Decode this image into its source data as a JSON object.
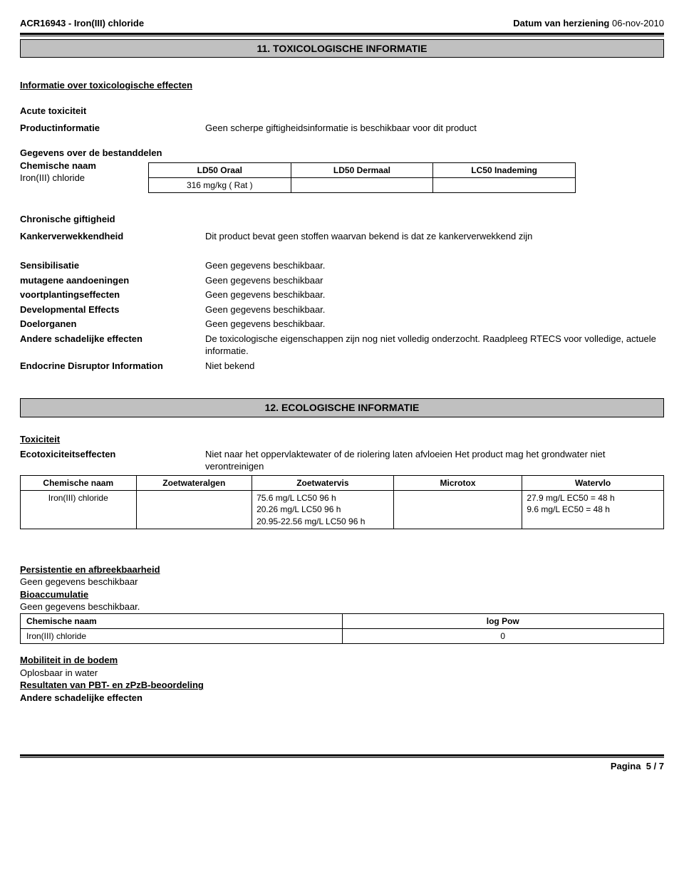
{
  "header": {
    "left": "ACR16943 - Iron(III) chloride",
    "right_label": "Datum van herziening",
    "right_value": "06-nov-2010"
  },
  "section11": {
    "banner": "11. TOXICOLOGISCHE INFORMATIE",
    "info_heading": "Informatie over toxicologische effecten",
    "acute_heading": "Acute toxiciteit",
    "productinfo_label": "Productinformatie",
    "productinfo_value": "Geen scherpe giftigheidsinformatie is beschikbaar voor dit product",
    "gegevens_heading": "Gegevens over de bestanddelen",
    "ld50_left_label": "Chemische naam",
    "ld50_left_value": "Iron(III) chloride",
    "ld50_table": {
      "headers": [
        "LD50 Oraal",
        "LD50 Dermaal",
        "LC50 Inademing"
      ],
      "row": [
        "316 mg/kg  ( Rat )",
        "",
        ""
      ]
    },
    "chron_heading": "Chronische giftigheid",
    "kanker_label": "Kankerverwekkendheid",
    "kanker_value": "Dit product bevat geen stoffen waarvan bekend is dat ze kankerverwekkend zijn",
    "props": [
      {
        "label": "Sensibilisatie",
        "value": "Geen gegevens beschikbaar."
      },
      {
        "label": "mutagene aandoeningen",
        "value": "Geen gegevens beschikbaar"
      },
      {
        "label": "voortplantingseffecten",
        "value": "Geen gegevens beschikbaar."
      },
      {
        "label": "Developmental Effects",
        "value": "Geen gegevens beschikbaar."
      },
      {
        "label": "Doelorganen",
        "value": "Geen gegevens beschikbaar."
      },
      {
        "label": "Andere schadelijke effecten",
        "value": "De toxicologische eigenschappen zijn nog niet volledig onderzocht. Raadpleeg RTECS voor volledige, actuele informatie."
      },
      {
        "label": "Endocrine Disruptor Information",
        "value": "Niet bekend"
      }
    ]
  },
  "section12": {
    "banner": "12. ECOLOGISCHE INFORMATIE",
    "tox_heading": "Toxiciteit",
    "ecotox_label": "Ecotoxiciteitseffecten",
    "ecotox_value": "Niet naar het oppervlaktewater of de riolering laten afvloeien Het product mag het grondwater niet verontreinigen",
    "eco_table": {
      "headers": [
        "Chemische naam",
        "Zoetwateralgen",
        "Zoetwatervis",
        "Microtox",
        "Watervlo"
      ],
      "row": {
        "name": "Iron(III) chloride",
        "algae": "",
        "fish": "75.6 mg/L LC50 96 h\n20.26 mg/L LC50 96 h\n20.95-22.56 mg/L LC50 96 h",
        "microtox": "",
        "watervlo": "27.9 mg/L EC50 = 48 h\n9.6 mg/L EC50 = 48 h"
      }
    },
    "persist_heading": "Persistentie en afbreekbaarheid",
    "persist_value": "Geen gegevens beschikbaar",
    "bioacc_heading": "Bioaccumulatie",
    "bioacc_value": "Geen gegevens beschikbaar.",
    "logpow_table": {
      "headers": [
        "Chemische naam",
        "log Pow"
      ],
      "row": [
        "Iron(III) chloride",
        "0"
      ]
    },
    "mobility_heading": "Mobiliteit in de bodem",
    "mobility_value": "Oplosbaar in water",
    "pbt_heading": "Resultaten van PBT- en zPzB-beoordeling",
    "other_heading": "Andere schadelijke effecten"
  },
  "footer": {
    "page_label": "Pagina",
    "page_value": "5 / 7"
  }
}
